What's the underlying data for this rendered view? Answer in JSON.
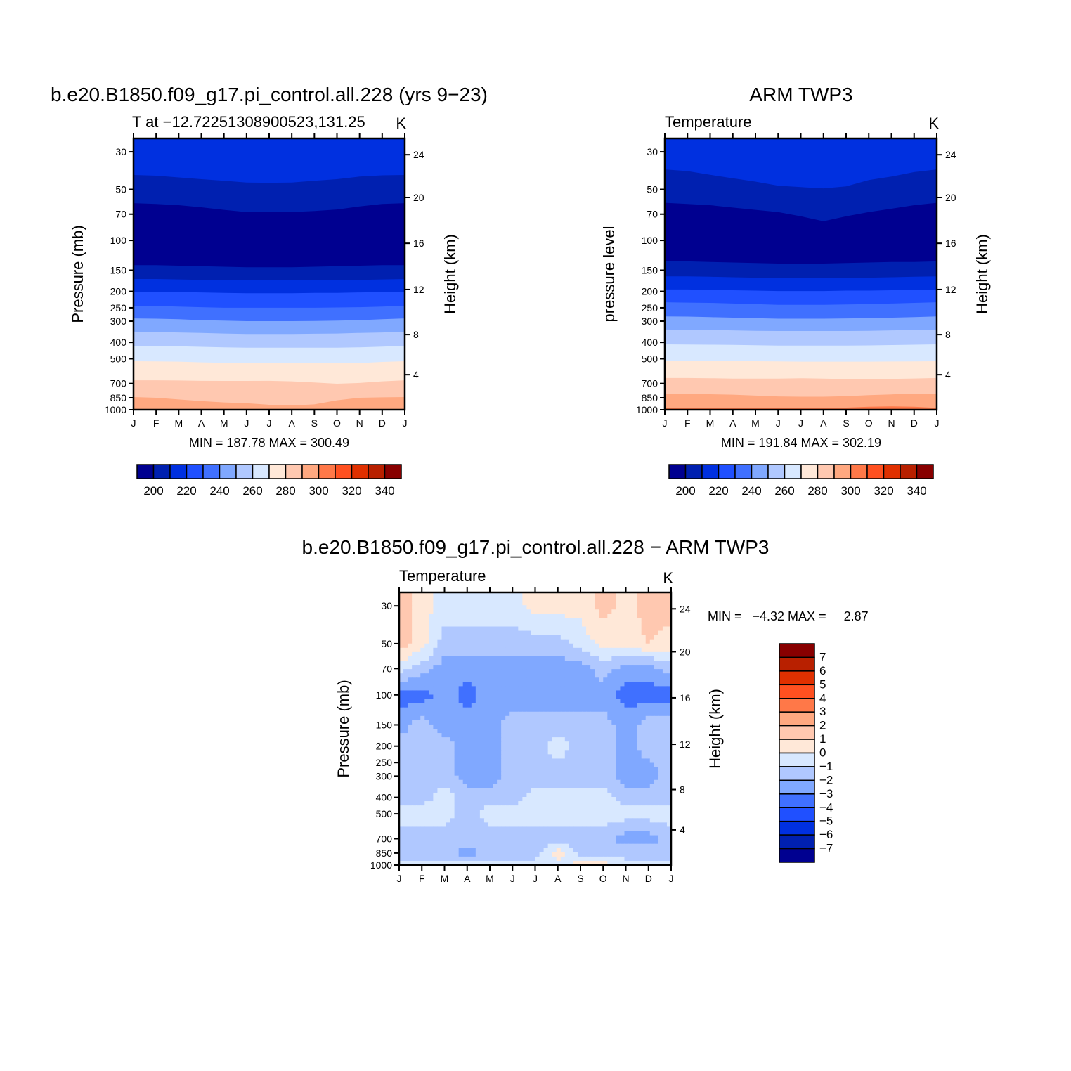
{
  "chart_data": [
    {
      "type": "heatmap",
      "title": "b.e20.B1850.f09_g17.pi_control.all.228 (yrs 9−23)",
      "subtitle": "T at −12.72251308900523,131.25",
      "units": "K",
      "ylabel": "Pressure (mb)",
      "y2label": "Height (km)",
      "min_max": "MIN = 187.78 MAX = 300.49",
      "base_color": "#ffa880",
      "contours": [
        {
          "level": 290,
          "above": "#ffc8b0",
          "p": [
            842,
            850,
            870,
            890,
            905,
            915,
            935,
            944,
            930,
            880,
            850,
            845,
            842
          ]
        },
        {
          "level": 280,
          "above": "#ffe8d8",
          "p": [
            670,
            670,
            672,
            675,
            676,
            676,
            675,
            680,
            690,
            702,
            695,
            680,
            670
          ]
        },
        {
          "level": 270,
          "above": "#d8e8ff",
          "p": [
            517,
            518,
            520,
            525,
            528,
            530,
            532,
            532,
            532,
            532,
            530,
            522,
            517
          ]
        },
        {
          "level": 260,
          "above": "#b0c8ff",
          "p": [
            419,
            420,
            422,
            425,
            428,
            430,
            430,
            430,
            430,
            430,
            428,
            424,
            419
          ]
        },
        {
          "level": 250,
          "above": "#80a8ff",
          "p": [
            346,
            348,
            350,
            352,
            355,
            357,
            357,
            357,
            356,
            355,
            352,
            350,
            346
          ]
        },
        {
          "level": 240,
          "above": "#4070ff",
          "p": [
            289,
            290,
            292,
            296,
            298,
            300,
            300,
            300,
            299,
            298,
            296,
            292,
            289
          ]
        },
        {
          "level": 230,
          "above": "#2050ff",
          "p": [
            243,
            244,
            246,
            248,
            250,
            250,
            250,
            250,
            250,
            249,
            248,
            246,
            243
          ]
        },
        {
          "level": 220,
          "above": "#0030e0",
          "p": [
            201,
            201,
            202,
            203,
            204,
            205,
            205,
            205,
            204,
            204,
            203,
            202,
            201
          ]
        },
        {
          "level": 210,
          "above": "#0020b0",
          "p": [
            169,
            169,
            170,
            171,
            172,
            172,
            172,
            172,
            172,
            171,
            171,
            170,
            169
          ]
        },
        {
          "level": 200,
          "above": "#000090",
          "p": [
            140,
            140,
            141,
            142,
            143,
            144,
            144,
            144,
            143,
            142,
            141,
            140,
            140
          ]
        },
        {
          "level": 200,
          "above": "#0020b0",
          "p": [
            60.3,
            61,
            62,
            63.8,
            66,
            68,
            68.2,
            68,
            67,
            65.7,
            63,
            61,
            60.3
          ]
        },
        {
          "level": 210,
          "above": "#0030e0",
          "p": [
            41.1,
            41.5,
            42.5,
            43.5,
            44.5,
            45.5,
            45.7,
            45.5,
            44.5,
            43.5,
            42,
            41.3,
            41.1
          ]
        }
      ]
    },
    {
      "type": "heatmap",
      "title": "ARM TWP3",
      "subtitle": "Temperature",
      "units": "K",
      "ylabel": "pressure level",
      "y2label": "Height (km)",
      "min_max": "MIN = 191.84 MAX = 302.19",
      "base_color": "#ff7848",
      "contours": [
        {
          "level": 300,
          "above": "#ffa880",
          "p": [
            975,
            975,
            975,
            975,
            975,
            975,
            975,
            975,
            972,
            960,
            955,
            960,
            975
          ]
        },
        {
          "level": 290,
          "above": "#ffc8b0",
          "p": [
            803,
            805,
            810,
            815,
            825,
            835,
            838,
            838,
            832,
            820,
            812,
            805,
            803
          ]
        },
        {
          "level": 280,
          "above": "#ffe8d8",
          "p": [
            650,
            650,
            652,
            655,
            655,
            655,
            652,
            655,
            660,
            660,
            658,
            654,
            650
          ]
        },
        {
          "level": 270,
          "above": "#d8e8ff",
          "p": [
            517,
            517,
            516,
            516,
            517,
            518,
            520,
            520,
            520,
            520,
            519,
            518,
            517
          ]
        },
        {
          "level": 260,
          "above": "#b0c8ff",
          "p": [
            411,
            412,
            413,
            414,
            416,
            418,
            418,
            418,
            418,
            417,
            415,
            413,
            411
          ]
        },
        {
          "level": 250,
          "above": "#80a8ff",
          "p": [
            336,
            337,
            338,
            340,
            342,
            343,
            343,
            343,
            343,
            342,
            340,
            338,
            336
          ]
        },
        {
          "level": 240,
          "above": "#4070ff",
          "p": [
            281,
            282,
            284,
            286,
            288,
            290,
            290,
            290,
            289,
            288,
            286,
            284,
            281
          ]
        },
        {
          "level": 230,
          "above": "#2050ff",
          "p": [
            232,
            233,
            234,
            236,
            238,
            240,
            240,
            240,
            239,
            238,
            236,
            234,
            232
          ]
        },
        {
          "level": 220,
          "above": "#0030e0",
          "p": [
            195,
            195,
            196,
            197,
            198,
            199,
            199,
            199,
            198,
            198,
            197,
            196,
            195
          ]
        },
        {
          "level": 210,
          "above": "#0020b0",
          "p": [
            163,
            163,
            164,
            165,
            166,
            167,
            167,
            167,
            166,
            166,
            165,
            164,
            163
          ]
        },
        {
          "level": 200,
          "above": "#000090",
          "p": [
            133,
            133,
            134,
            135,
            136,
            137,
            137,
            137,
            136,
            135,
            134,
            134,
            133
          ]
        },
        {
          "level": 200,
          "above": "#0020b0",
          "p": [
            60,
            61,
            62,
            64,
            66,
            68,
            72,
            77,
            72,
            68,
            65,
            62,
            60
          ]
        },
        {
          "level": 210,
          "above": "#0030e0",
          "p": [
            38.1,
            39,
            41,
            43,
            45,
            47.5,
            48.5,
            49.3,
            48,
            44,
            42,
            39.5,
            38.1
          ]
        }
      ]
    },
    {
      "type": "heatmap",
      "title": "b.e20.B1850.f09_g17.pi_control.all.228 − ARM TWP3",
      "subtitle": "Temperature",
      "units": "K",
      "ylabel": "Pressure (mb)",
      "y2label": "Height (km)",
      "min_max": "MIN =   −4.32 MAX =     2.87",
      "grid_levels": [
        30,
        50,
        70,
        100,
        150,
        200,
        300,
        400,
        500,
        700,
        850,
        1000
      ],
      "grid_values": [
        [
          1.5,
          0.5,
          -0.5,
          -0.5,
          -0.5,
          -0.5,
          0.5,
          0.5,
          0.3,
          1.5,
          0.5,
          1.5,
          1.5
        ],
        [
          1.5,
          0.5,
          -1.5,
          -1.5,
          -1.5,
          -1.5,
          -1.5,
          -1.5,
          -0.5,
          0.3,
          0.5,
          1.0,
          0.5
        ],
        [
          -0.5,
          -1.5,
          -2.5,
          -2.5,
          -2.5,
          -2.5,
          -2.5,
          -2.5,
          -2.5,
          -1.5,
          -2.5,
          -2.5,
          -1.5
        ],
        [
          -3.5,
          -3.5,
          -2.5,
          -3.5,
          -2.5,
          -2.5,
          -2.5,
          -2.5,
          -2.5,
          -2.5,
          -3.5,
          -3.5,
          -3.5
        ],
        [
          -2.5,
          -1.5,
          -2.5,
          -2.5,
          -2.5,
          -1.5,
          -1.5,
          -1.5,
          -1.5,
          -1.5,
          -2.5,
          -1.5,
          -1.5
        ],
        [
          -1.5,
          -1.5,
          -1.5,
          -2.5,
          -2.5,
          -1.5,
          -1.5,
          -0.5,
          -1.5,
          -1.5,
          -2.5,
          -1.5,
          -1.5
        ],
        [
          -1.5,
          -1.5,
          -1.5,
          -2.5,
          -2.5,
          -1.5,
          -1.5,
          -1.5,
          -1.5,
          -1.5,
          -2.5,
          -2.5,
          -1.5
        ],
        [
          -1.5,
          -1.5,
          -0.5,
          -1.5,
          -1.5,
          -1.5,
          -0.5,
          -0.5,
          -0.5,
          -0.5,
          -1.5,
          -1.5,
          -1.5
        ],
        [
          -0.5,
          -0.5,
          -0.5,
          -1.5,
          -0.5,
          -0.5,
          -0.5,
          -0.5,
          -0.5,
          -0.5,
          -0.5,
          -0.5,
          -0.5
        ],
        [
          -1.5,
          -1.5,
          -1.5,
          -1.5,
          -1.5,
          -1.5,
          -1.5,
          -1.5,
          -1.5,
          -1.5,
          -2.5,
          -2.5,
          -1.5
        ],
        [
          -1.5,
          -1.5,
          -1.5,
          -2.5,
          -1.5,
          -1.5,
          -1.5,
          0.5,
          -1.5,
          -1.5,
          -1.5,
          -1.5,
          -1.5
        ],
        [
          -0.5,
          -0.5,
          -0.5,
          -0.5,
          -0.5,
          -0.5,
          -0.5,
          -0.5,
          0.5,
          0.5,
          -0.5,
          -0.5,
          -0.5
        ]
      ]
    }
  ],
  "months": [
    "J",
    "F",
    "M",
    "A",
    "M",
    "J",
    "J",
    "A",
    "S",
    "O",
    "N",
    "D",
    "J"
  ],
  "pressure_ticks": [
    30,
    50,
    70,
    100,
    150,
    200,
    250,
    300,
    400,
    500,
    700,
    850,
    1000
  ],
  "pressure_range": [
    25,
    1000
  ],
  "height_ticks": [
    {
      "km": "24",
      "p": 31.2
    },
    {
      "km": "20",
      "p": 55.8
    },
    {
      "km": "16",
      "p": 104
    },
    {
      "km": "12",
      "p": 195
    },
    {
      "km": "8",
      "p": 360
    },
    {
      "km": "4",
      "p": 621
    }
  ],
  "palette": [
    "#000090",
    "#0020b0",
    "#0030e0",
    "#2050ff",
    "#4070ff",
    "#80a8ff",
    "#b0c8ff",
    "#d8e8ff",
    "#ffe8d8",
    "#ffc8b0",
    "#ffa880",
    "#ff7848",
    "#ff5020",
    "#e03000",
    "#b82000",
    "#880000"
  ],
  "colorbar_abs_labels": [
    "200",
    "220",
    "240",
    "260",
    "280",
    "300",
    "320",
    "340"
  ],
  "colorbar_diff_labels": [
    "7",
    "6",
    "5",
    "4",
    "3",
    "2",
    "1",
    "0",
    "−1",
    "−2",
    "−3",
    "−4",
    "−5",
    "−6",
    "−7"
  ]
}
